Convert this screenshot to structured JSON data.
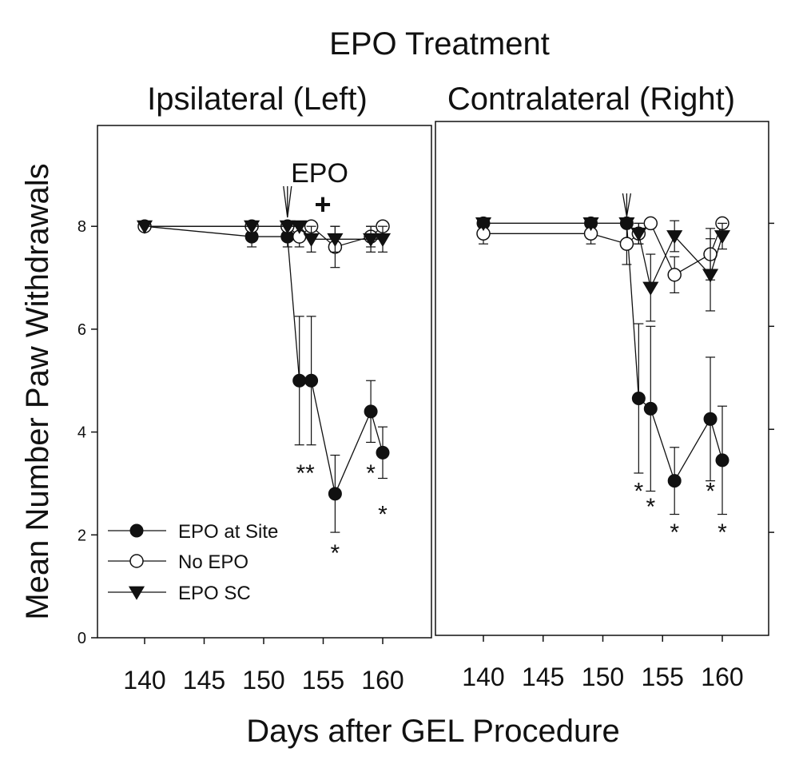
{
  "figure": {
    "title": "EPO Treatment",
    "ylabel": "Mean Number Paw Withdrawals",
    "xlabel": "Days after GEL Procedure"
  },
  "legend": [
    {
      "label": "EPO at Site",
      "marker": "filled-circle"
    },
    {
      "label": "No EPO",
      "marker": "open-circle"
    },
    {
      "label": "EPO SC",
      "marker": "filled-triangle-down"
    }
  ],
  "chart_data": [
    {
      "type": "line",
      "subtitle": "Ipsilateral (Left)",
      "xticks": [
        "140",
        "145",
        "150",
        "155",
        "160"
      ],
      "yticks": [
        "0",
        "2",
        "4",
        "6",
        "8"
      ],
      "xlim": [
        136,
        164
      ],
      "ylim": [
        0,
        10
      ],
      "annotation": {
        "text": "EPO",
        "symbol": "+",
        "arrow_day": 152
      },
      "series": [
        {
          "name": "EPO at Site",
          "x": [
            140,
            149,
            152,
            153,
            154,
            156,
            159,
            160
          ],
          "y": [
            8.0,
            7.8,
            7.8,
            5.0,
            5.0,
            2.8,
            4.4,
            3.6
          ],
          "err": [
            0,
            0.2,
            0.2,
            1.25,
            1.25,
            0.75,
            0.6,
            0.5
          ]
        },
        {
          "name": "No EPO",
          "x": [
            140,
            149,
            152,
            153,
            154,
            156,
            159,
            160
          ],
          "y": [
            8.0,
            8.0,
            8.0,
            7.8,
            8.0,
            7.6,
            7.8,
            8.0
          ],
          "err": [
            0,
            0,
            0,
            0.2,
            0,
            0.4,
            0.2,
            0
          ]
        },
        {
          "name": "EPO SC",
          "x": [
            140,
            149,
            152,
            153,
            154,
            156,
            159,
            160
          ],
          "y": [
            8.0,
            8.0,
            8.0,
            8.0,
            7.75,
            7.75,
            7.75,
            7.75
          ],
          "err": [
            0,
            0,
            0,
            0,
            0.25,
            0.25,
            0.25,
            0.25
          ]
        }
      ],
      "significance": [
        {
          "x": 153.5,
          "y": 3.2,
          "text": "**"
        },
        {
          "x": 156,
          "y": 1.65,
          "text": "*"
        },
        {
          "x": 159,
          "y": 3.2,
          "text": "*"
        },
        {
          "x": 160,
          "y": 2.4,
          "text": "*"
        }
      ]
    },
    {
      "type": "line",
      "subtitle": "Contralateral (Right)",
      "xticks": [
        "140",
        "145",
        "150",
        "155",
        "160"
      ],
      "yticks": [],
      "xlim": [
        136,
        164
      ],
      "ylim": [
        0,
        10
      ],
      "annotation": {
        "text": "",
        "symbol": "",
        "arrow_day": 152
      },
      "series": [
        {
          "name": "EPO at Site",
          "x": [
            140,
            149,
            152,
            153,
            154,
            156,
            159,
            160
          ],
          "y": [
            8.0,
            8.0,
            8.0,
            4.6,
            4.4,
            3.0,
            4.2,
            3.4
          ],
          "err": [
            0,
            0,
            0,
            1.45,
            1.6,
            0.65,
            1.2,
            1.05
          ]
        },
        {
          "name": "No EPO",
          "x": [
            140,
            149,
            152,
            153,
            154,
            156,
            159,
            160
          ],
          "y": [
            7.8,
            7.8,
            7.6,
            7.8,
            8.0,
            7.0,
            7.4,
            8.0
          ],
          "err": [
            0.2,
            0.2,
            0.4,
            0.2,
            0,
            0.35,
            0.5,
            0
          ]
        },
        {
          "name": "EPO SC",
          "x": [
            140,
            149,
            152,
            153,
            154,
            156,
            159,
            160
          ],
          "y": [
            8.0,
            8.0,
            8.0,
            7.8,
            6.75,
            7.75,
            7.0,
            7.75
          ],
          "err": [
            0,
            0,
            0,
            0.2,
            0.65,
            0.3,
            0.7,
            0.25
          ]
        }
      ],
      "significance": [
        {
          "x": 153,
          "y": 2.8,
          "text": "*"
        },
        {
          "x": 154,
          "y": 2.5,
          "text": "*"
        },
        {
          "x": 156,
          "y": 2.0,
          "text": "*"
        },
        {
          "x": 159,
          "y": 2.8,
          "text": "*"
        },
        {
          "x": 160,
          "y": 2.0,
          "text": "*"
        }
      ]
    }
  ]
}
